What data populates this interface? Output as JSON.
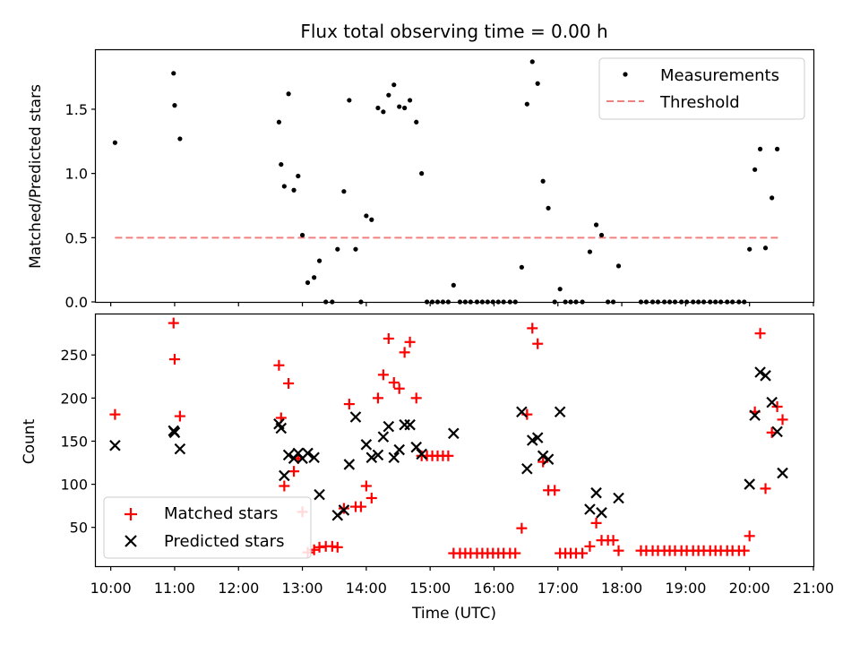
{
  "chart_data": [
    {
      "type": "scatter",
      "title": "Flux total observing time = 0.00 h",
      "xlabel": "",
      "ylabel": "Matched/Predicted stars",
      "xlim": [
        "09:46",
        "21:00"
      ],
      "ylim": [
        0,
        1.96
      ],
      "yticks": [
        "0.0",
        "0.5",
        "1.0",
        "1.5"
      ],
      "legend_position": "upper right",
      "colors": {
        "measurements": "#000000",
        "threshold": "#f08080"
      },
      "series": [
        {
          "name": "Measurements",
          "marker": "dot",
          "points": [
            [
              "10:04",
              1.24
            ],
            [
              "10:59",
              1.78
            ],
            [
              "11:00",
              1.53
            ],
            [
              "11:05",
              1.27
            ],
            [
              "12:38",
              1.4
            ],
            [
              "12:40",
              1.07
            ],
            [
              "12:43",
              0.9
            ],
            [
              "12:47",
              1.62
            ],
            [
              "12:52",
              0.87
            ],
            [
              "12:56",
              0.98
            ],
            [
              "13:00",
              0.52
            ],
            [
              "13:05",
              0.15
            ],
            [
              "13:11",
              0.19
            ],
            [
              "13:16",
              0.32
            ],
            [
              "13:22",
              0.0
            ],
            [
              "13:28",
              0.0
            ],
            [
              "13:33",
              0.41
            ],
            [
              "13:39",
              0.86
            ],
            [
              "13:44",
              1.57
            ],
            [
              "13:50",
              0.41
            ],
            [
              "13:55",
              0.0
            ],
            [
              "14:00",
              0.67
            ],
            [
              "14:05",
              0.64
            ],
            [
              "14:11",
              1.51
            ],
            [
              "14:16",
              1.48
            ],
            [
              "14:21",
              1.61
            ],
            [
              "14:26",
              1.69
            ],
            [
              "14:31",
              1.52
            ],
            [
              "14:36",
              1.51
            ],
            [
              "14:41",
              1.57
            ],
            [
              "14:47",
              1.4
            ],
            [
              "14:52",
              1.0
            ],
            [
              "14:57",
              0.0
            ],
            [
              "15:02",
              0.0
            ],
            [
              "15:07",
              0.0
            ],
            [
              "15:12",
              0.0
            ],
            [
              "15:17",
              0.0
            ],
            [
              "15:22",
              0.13
            ],
            [
              "15:28",
              0.0
            ],
            [
              "15:33",
              0.0
            ],
            [
              "15:38",
              0.0
            ],
            [
              "15:44",
              0.0
            ],
            [
              "15:49",
              0.0
            ],
            [
              "15:54",
              0.0
            ],
            [
              "15:59",
              0.0
            ],
            [
              "16:04",
              0.0
            ],
            [
              "16:09",
              0.0
            ],
            [
              "16:15",
              0.0
            ],
            [
              "16:20",
              0.0
            ],
            [
              "16:26",
              0.27
            ],
            [
              "16:31",
              1.54
            ],
            [
              "16:36",
              1.87
            ],
            [
              "16:41",
              1.7
            ],
            [
              "16:46",
              0.94
            ],
            [
              "16:51",
              0.73
            ],
            [
              "16:57",
              0.0
            ],
            [
              "17:02",
              0.1
            ],
            [
              "17:07",
              0.0
            ],
            [
              "17:12",
              0.0
            ],
            [
              "17:17",
              0.0
            ],
            [
              "17:23",
              0.0
            ],
            [
              "17:30",
              0.39
            ],
            [
              "17:36",
              0.6
            ],
            [
              "17:41",
              0.52
            ],
            [
              "17:47",
              0.0
            ],
            [
              "17:52",
              0.0
            ],
            [
              "17:57",
              0.28
            ],
            [
              "18:18",
              0.0
            ],
            [
              "18:23",
              0.0
            ],
            [
              "18:29",
              0.0
            ],
            [
              "18:34",
              0.0
            ],
            [
              "18:40",
              0.0
            ],
            [
              "18:45",
              0.0
            ],
            [
              "18:50",
              0.0
            ],
            [
              "18:56",
              0.0
            ],
            [
              "19:01",
              0.0
            ],
            [
              "19:07",
              0.0
            ],
            [
              "19:12",
              0.0
            ],
            [
              "19:17",
              0.0
            ],
            [
              "19:23",
              0.0
            ],
            [
              "19:28",
              0.0
            ],
            [
              "19:33",
              0.0
            ],
            [
              "19:39",
              0.0
            ],
            [
              "19:44",
              0.0
            ],
            [
              "19:50",
              0.0
            ],
            [
              "19:55",
              0.0
            ],
            [
              "20:00",
              0.41
            ],
            [
              "20:05",
              1.03
            ],
            [
              "20:10",
              1.19
            ],
            [
              "20:15",
              0.42
            ],
            [
              "20:21",
              0.81
            ],
            [
              "20:26",
              1.19
            ]
          ]
        },
        {
          "name": "Threshold",
          "marker": "dashed-line",
          "points": [
            [
              "10:04",
              0.5
            ],
            [
              "20:30",
              0.5
            ]
          ]
        }
      ]
    },
    {
      "type": "scatter",
      "title": "",
      "xlabel": "Time (UTC)",
      "ylabel": "Count",
      "xlim": [
        "09:46",
        "21:00"
      ],
      "ylim": [
        5,
        297
      ],
      "yticks": [
        "50",
        "100",
        "150",
        "200",
        "250"
      ],
      "xticks": [
        "10:00",
        "11:00",
        "12:00",
        "13:00",
        "14:00",
        "15:00",
        "16:00",
        "17:00",
        "18:00",
        "19:00",
        "20:00",
        "21:00"
      ],
      "legend_position": "lower left",
      "colors": {
        "matched": "#ff0000",
        "predicted": "#000000"
      },
      "series": [
        {
          "name": "Matched stars",
          "marker": "plus",
          "points": [
            [
              "10:04",
              181
            ],
            [
              "10:59",
              287
            ],
            [
              "11:00",
              245
            ],
            [
              "11:05",
              179
            ],
            [
              "12:38",
              238
            ],
            [
              "12:40",
              177
            ],
            [
              "12:43",
              98
            ],
            [
              "12:47",
              217
            ],
            [
              "12:52",
              115
            ],
            [
              "12:56",
              130
            ],
            [
              "13:00",
              68
            ],
            [
              "13:05",
              21
            ],
            [
              "13:11",
              24
            ],
            [
              "13:16",
              27
            ],
            [
              "13:22",
              28
            ],
            [
              "13:28",
              28
            ],
            [
              "13:33",
              27
            ],
            [
              "13:39",
              72
            ],
            [
              "13:44",
              193
            ],
            [
              "13:50",
              74
            ],
            [
              "13:55",
              74
            ],
            [
              "14:00",
              98
            ],
            [
              "14:05",
              84
            ],
            [
              "14:11",
              200
            ],
            [
              "14:16",
              227
            ],
            [
              "14:21",
              269
            ],
            [
              "14:26",
              218
            ],
            [
              "14:31",
              211
            ],
            [
              "14:36",
              253
            ],
            [
              "14:41",
              265
            ],
            [
              "14:47",
              200
            ],
            [
              "14:52",
              133
            ],
            [
              "14:57",
              133
            ],
            [
              "15:02",
              133
            ],
            [
              "15:07",
              133
            ],
            [
              "15:12",
              133
            ],
            [
              "15:17",
              133
            ],
            [
              "15:22",
              20
            ],
            [
              "15:28",
              20
            ],
            [
              "15:33",
              20
            ],
            [
              "15:38",
              20
            ],
            [
              "15:44",
              20
            ],
            [
              "15:49",
              20
            ],
            [
              "15:54",
              20
            ],
            [
              "15:59",
              20
            ],
            [
              "16:04",
              20
            ],
            [
              "16:09",
              20
            ],
            [
              "16:15",
              20
            ],
            [
              "16:20",
              20
            ],
            [
              "16:26",
              49
            ],
            [
              "16:31",
              181
            ],
            [
              "16:36",
              281
            ],
            [
              "16:41",
              263
            ],
            [
              "16:46",
              126
            ],
            [
              "16:51",
              93
            ],
            [
              "16:57",
              93
            ],
            [
              "17:02",
              20
            ],
            [
              "17:07",
              20
            ],
            [
              "17:12",
              20
            ],
            [
              "17:17",
              20
            ],
            [
              "17:23",
              20
            ],
            [
              "17:30",
              28
            ],
            [
              "17:36",
              55
            ],
            [
              "17:41",
              35
            ],
            [
              "17:47",
              35
            ],
            [
              "17:52",
              35
            ],
            [
              "17:57",
              23
            ],
            [
              "18:18",
              23
            ],
            [
              "18:23",
              23
            ],
            [
              "18:29",
              23
            ],
            [
              "18:34",
              23
            ],
            [
              "18:40",
              23
            ],
            [
              "18:45",
              23
            ],
            [
              "18:50",
              23
            ],
            [
              "18:56",
              23
            ],
            [
              "19:01",
              23
            ],
            [
              "19:07",
              23
            ],
            [
              "19:12",
              23
            ],
            [
              "19:17",
              23
            ],
            [
              "19:23",
              23
            ],
            [
              "19:28",
              23
            ],
            [
              "19:33",
              23
            ],
            [
              "19:39",
              23
            ],
            [
              "19:44",
              23
            ],
            [
              "19:50",
              23
            ],
            [
              "19:55",
              23
            ],
            [
              "20:00",
              40
            ],
            [
              "20:05",
              184
            ],
            [
              "20:10",
              275
            ],
            [
              "20:15",
              95
            ],
            [
              "20:21",
              160
            ],
            [
              "20:26",
              190
            ],
            [
              "20:31",
              175
            ]
          ]
        },
        {
          "name": "Predicted stars",
          "marker": "x",
          "points": [
            [
              "10:04",
              145
            ],
            [
              "10:59",
              162
            ],
            [
              "11:00",
              160
            ],
            [
              "11:05",
              141
            ],
            [
              "12:38",
              170
            ],
            [
              "12:40",
              165
            ],
            [
              "12:43",
              110
            ],
            [
              "12:47",
              134
            ],
            [
              "12:52",
              130
            ],
            [
              "12:56",
              136
            ],
            [
              "13:00",
              130
            ],
            [
              "13:05",
              136
            ],
            [
              "13:11",
              131
            ],
            [
              "13:16",
              88
            ],
            [
              "13:33",
              64
            ],
            [
              "13:39",
              70
            ],
            [
              "13:44",
              123
            ],
            [
              "13:50",
              178
            ],
            [
              "14:00",
              146
            ],
            [
              "14:05",
              131
            ],
            [
              "14:11",
              134
            ],
            [
              "14:16",
              155
            ],
            [
              "14:21",
              167
            ],
            [
              "14:26",
              131
            ],
            [
              "14:31",
              140
            ],
            [
              "14:36",
              169
            ],
            [
              "14:41",
              169
            ],
            [
              "14:47",
              143
            ],
            [
              "14:52",
              135
            ],
            [
              "15:22",
              159
            ],
            [
              "16:26",
              184
            ],
            [
              "16:31",
              118
            ],
            [
              "16:36",
              151
            ],
            [
              "16:41",
              154
            ],
            [
              "16:46",
              133
            ],
            [
              "16:51",
              129
            ],
            [
              "17:02",
              184
            ],
            [
              "17:30",
              71
            ],
            [
              "17:36",
              90
            ],
            [
              "17:41",
              67
            ],
            [
              "17:57",
              84
            ],
            [
              "20:00",
              100
            ],
            [
              "20:05",
              180
            ],
            [
              "20:10",
              230
            ],
            [
              "20:15",
              226
            ],
            [
              "20:21",
              195
            ],
            [
              "20:26",
              161
            ],
            [
              "20:31",
              113
            ]
          ]
        }
      ]
    }
  ]
}
